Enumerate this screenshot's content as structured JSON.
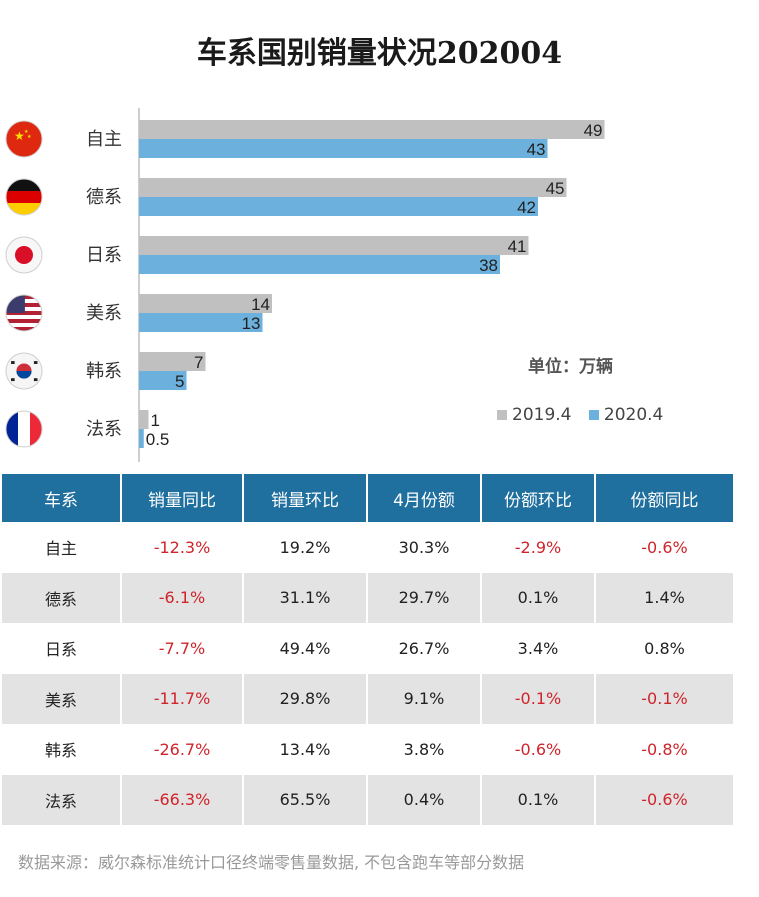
{
  "title": "车系国别销量状况202004",
  "unit_label": "单位：万辆",
  "chart_data": {
    "type": "bar",
    "orientation": "horizontal",
    "categories": [
      "自主",
      "德系",
      "日系",
      "美系",
      "韩系",
      "法系"
    ],
    "flags": [
      "china-flag-icon",
      "germany-flag-icon",
      "japan-flag-icon",
      "usa-flag-icon",
      "korea-flag-icon",
      "france-flag-icon"
    ],
    "series": [
      {
        "name": "2019.4",
        "color": "#c0c0c0",
        "values": [
          49,
          45,
          41,
          14,
          7,
          1
        ]
      },
      {
        "name": "2020.4",
        "color": "#6cb1dd",
        "values": [
          43,
          42,
          38,
          13,
          5,
          0.5
        ]
      }
    ],
    "value_labels": [
      [
        "49",
        "45",
        "41",
        "14",
        "7",
        "1"
      ],
      [
        "43",
        "42",
        "38",
        "13",
        "5",
        "0.5"
      ]
    ],
    "xlim": [
      0,
      52
    ],
    "grid": false,
    "legend_position": "bottom-right"
  },
  "table": {
    "headers": [
      "车系",
      "销量同比",
      "销量环比",
      "4月份额",
      "份额环比",
      "份额同比"
    ],
    "rows": [
      [
        "自主",
        "-12.3%",
        "19.2%",
        "30.3%",
        "-2.9%",
        "-0.6%"
      ],
      [
        "德系",
        "-6.1%",
        "31.1%",
        "29.7%",
        "0.1%",
        "1.4%"
      ],
      [
        "日系",
        "-7.7%",
        "49.4%",
        "26.7%",
        "3.4%",
        "0.8%"
      ],
      [
        "美系",
        "-11.7%",
        "29.8%",
        "9.1%",
        "-0.1%",
        "-0.1%"
      ],
      [
        "韩系",
        "-26.7%",
        "13.4%",
        "3.8%",
        "-0.6%",
        "-0.8%"
      ],
      [
        "法系",
        "-66.3%",
        "65.5%",
        "0.4%",
        "0.1%",
        "-0.6%"
      ]
    ]
  },
  "footer": "数据来源：威尔森标准统计口径终端零售量数据, 不包含跑车等部分数据",
  "colors": {
    "header_bg": "#1f6f9f",
    "negative": "#d0242b",
    "alt_row": "#e3e3e3"
  }
}
